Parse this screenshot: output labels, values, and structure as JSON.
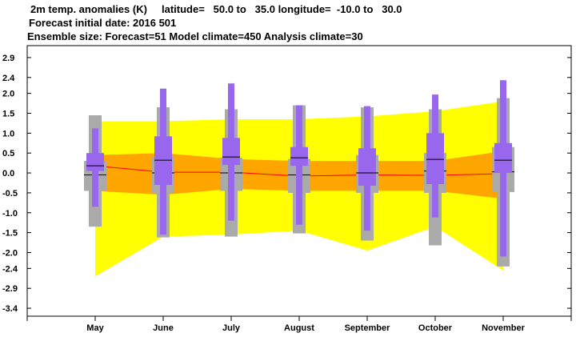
{
  "header": {
    "line1": "2m temp. anomalies (K)     latitude=   50.0 to   35.0 longitude=  -10.0 to   30.0",
    "line2": "Forecast initial date: 2016 501",
    "line3": "Ensemble size: Forecast=51 Model climate=450 Analysis climate=30"
  },
  "chart_data": {
    "type": "box-plot",
    "categories": [
      "May",
      "June",
      "July",
      "August",
      "September",
      "October",
      "November"
    ],
    "ylim": [
      -3.6,
      3.2
    ],
    "yticks": [
      2.9,
      2.4,
      2.0,
      1.5,
      1.0,
      0.5,
      0.0,
      -0.5,
      -1.0,
      -1.5,
      -2.0,
      -2.4,
      -2.9,
      -3.4
    ],
    "ytick_labels": [
      "2.9",
      "2.4",
      "2.0",
      "1.5",
      "1.0",
      "0.5",
      "0.0",
      "-0.5",
      "-1.0",
      "-1.5",
      "-2.0",
      "-2.4",
      "-2.9",
      "-3.4"
    ],
    "model_climate_envelope": {
      "upper": [
        1.3,
        1.3,
        1.35,
        1.35,
        1.42,
        1.55,
        1.8
      ],
      "lower": [
        -2.6,
        -1.6,
        -1.55,
        -1.45,
        -1.95,
        -1.35,
        -2.45
      ]
    },
    "model_climate_iqr": {
      "upper": [
        0.45,
        0.5,
        0.35,
        0.3,
        0.3,
        0.3,
        0.55
      ],
      "lower": [
        -0.45,
        -0.55,
        -0.4,
        -0.45,
        -0.45,
        -0.45,
        -0.65
      ]
    },
    "model_climate_median": [
      0.18,
      0.02,
      0.02,
      -0.08,
      -0.05,
      -0.06,
      -0.02
    ],
    "analysis_climate": {
      "min": [
        -1.35,
        -1.62,
        -1.6,
        -1.52,
        -1.7,
        -1.82,
        -2.35
      ],
      "p10": [
        -0.45,
        -0.5,
        -0.45,
        -0.5,
        -0.5,
        -0.5,
        -0.48
      ],
      "p90": [
        0.3,
        0.4,
        0.38,
        0.35,
        0.45,
        0.5,
        0.65
      ],
      "max": [
        1.45,
        1.65,
        1.6,
        1.7,
        1.65,
        1.6,
        1.88
      ],
      "median": [
        -0.05,
        0.0,
        0.0,
        -0.05,
        0.0,
        0.05,
        0.03
      ]
    },
    "forecast": {
      "min": [
        -0.85,
        -1.55,
        -1.2,
        -1.3,
        -1.45,
        -1.12,
        -2.1
      ],
      "q1": [
        0.05,
        -0.3,
        0.2,
        0.18,
        -0.32,
        -0.28,
        0.0
      ],
      "q3": [
        0.5,
        0.92,
        0.88,
        0.65,
        0.62,
        1.0,
        0.75
      ],
      "max": [
        1.12,
        2.12,
        2.25,
        1.7,
        1.68,
        1.97,
        2.33
      ],
      "median": [
        0.18,
        0.32,
        0.4,
        0.38,
        0.0,
        0.34,
        0.32
      ]
    },
    "colors": {
      "envelope": "#ffff00",
      "iqr": "#ffa500",
      "median_line": "#ff0000",
      "analysis_box": "#aaaaaa",
      "forecast_box": "#9966ee",
      "median_mark": "#000000"
    }
  }
}
